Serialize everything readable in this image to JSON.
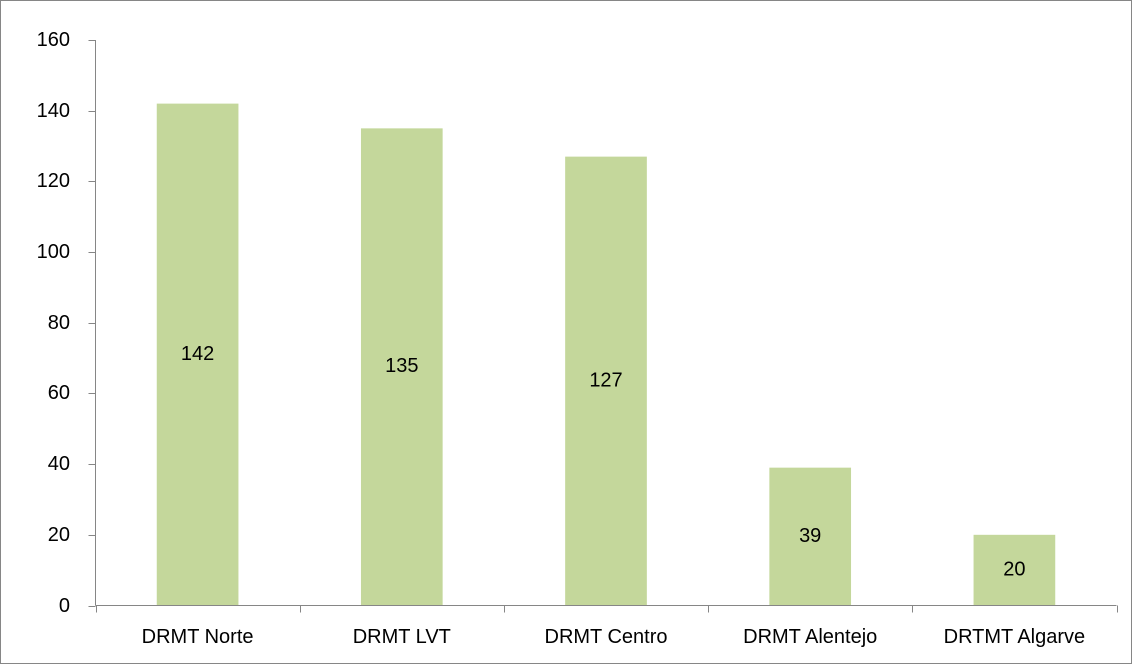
{
  "chart_data": {
    "type": "bar",
    "categories": [
      "DRMT Norte",
      "DRMT LVT",
      "DRMT Centro",
      "DRMT Alentejo",
      "DRTMT Algarve"
    ],
    "values": [
      142,
      135,
      127,
      39,
      20
    ],
    "color": "#c4d79b",
    "ylim": [
      0,
      160
    ],
    "yticks": [
      0,
      20,
      40,
      60,
      80,
      100,
      120,
      140,
      160
    ],
    "grid": false
  }
}
